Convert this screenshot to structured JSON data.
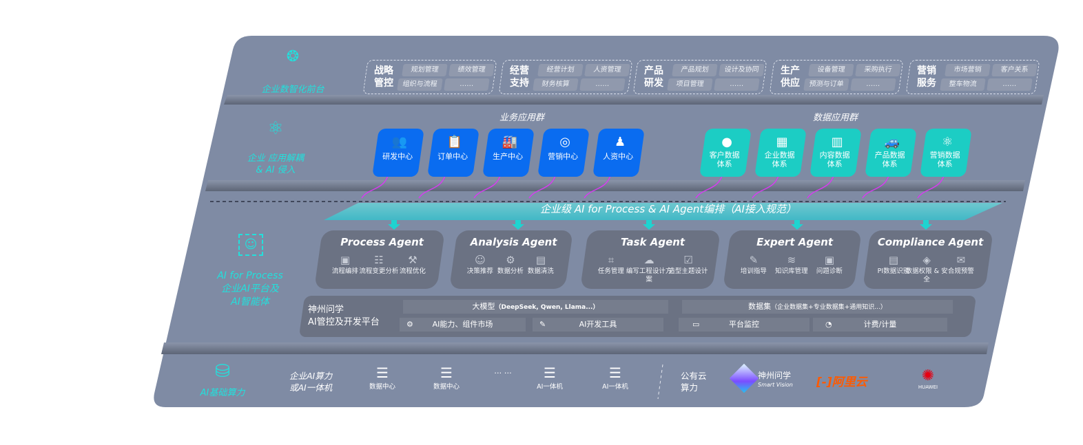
{
  "layers": {
    "front": "企业数智化前台",
    "apps": [
      "企业 应用解耦",
      "& AI 侵入"
    ],
    "ai": [
      "AI for Process",
      "企业AI平台及",
      "AI智能体"
    ],
    "infra": "AI基础算力"
  },
  "front_groups": [
    {
      "title": [
        "战略",
        "管控"
      ],
      "items": [
        "规划管理",
        "绩效管理",
        "组织与流程",
        "……"
      ]
    },
    {
      "title": [
        "经营",
        "支持"
      ],
      "items": [
        "经营计划",
        "人资管理",
        "财务核算",
        "……"
      ]
    },
    {
      "title": [
        "产品",
        "研发"
      ],
      "items": [
        "产品规划",
        "设计及协同",
        "项目管理",
        "……"
      ]
    },
    {
      "title": [
        "生产",
        "供应"
      ],
      "items": [
        "设备管理",
        "采购执行",
        "预测与订单",
        "……"
      ]
    },
    {
      "title": [
        "营销",
        "服务"
      ],
      "items": [
        "市场营销",
        "客户关系",
        "整车物流",
        "……"
      ]
    }
  ],
  "business_apps": {
    "title": "业务应用群",
    "items": [
      {
        "label": "研发中心",
        "icon": "team-icon"
      },
      {
        "label": "订单中心",
        "icon": "clipboard-icon"
      },
      {
        "label": "生产中心",
        "icon": "factory-icon"
      },
      {
        "label": "营销中心",
        "icon": "target-icon"
      },
      {
        "label": "人资中心",
        "icon": "people-icon"
      }
    ]
  },
  "data_apps": {
    "title": "数据应用群",
    "items": [
      {
        "label": [
          "客户数据",
          "体系"
        ],
        "icon": "user-icon"
      },
      {
        "label": [
          "企业数据",
          "体系"
        ],
        "icon": "building-icon"
      },
      {
        "label": [
          "内容数据",
          "体系"
        ],
        "icon": "books-icon"
      },
      {
        "label": [
          "产品数据",
          "体系"
        ],
        "icon": "car-icon"
      },
      {
        "label": [
          "营销数据",
          "体系"
        ],
        "icon": "atom-icon"
      }
    ]
  },
  "orchestration": "企业级 AI for Process & AI Agent编排（AI接入规范）",
  "agents": [
    {
      "name": "Process Agent",
      "items": [
        "流程编排",
        "流程变更分析",
        "流程优化"
      ]
    },
    {
      "name": "Analysis Agent",
      "items": [
        "决策推荐",
        "数据分析",
        "数据清洗"
      ]
    },
    {
      "name": "Task Agent",
      "items": [
        "任务管理",
        "编写工程设计方案",
        "造型主题设计"
      ]
    },
    {
      "name": "Expert Agent",
      "items": [
        "培训指导",
        "知识库管理",
        "问题诊断"
      ]
    },
    {
      "name": "Compliance Agent",
      "items": [
        "PI数据识别",
        "数据权限 & 安全",
        "合规预警"
      ]
    }
  ],
  "platform": {
    "title": [
      "神州问学",
      "AI管控及开发平台"
    ],
    "llm": "大模型",
    "llm_note": "（DeepSeek, Qwen, Llama...）",
    "dataset": "数据集",
    "dataset_note": "（企业数据集+专业数据集+通用知识...）",
    "market": "AI能力、组件市场",
    "devtools": "AI开发工具",
    "monitor": "平台监控",
    "billing": "计费/计量"
  },
  "infra": {
    "private": [
      "企业AI算力",
      "或AI一体机"
    ],
    "nodes": [
      "数据中心",
      "数据中心",
      "AI一体机",
      "AI一体机"
    ],
    "ellipsis": "… …",
    "public": [
      "公有云",
      "算力"
    ],
    "vendors": {
      "shenzhou": "神州问学",
      "shenzhou_sub": "Smart Vision",
      "aliyun": "阿里云",
      "huawei": "HUAWEI"
    }
  },
  "colors": {
    "panel": "#7f8ba4",
    "blue": "#0a6cf0",
    "teal": "#1ccdc4",
    "cyan": "#22e0dc",
    "arrow": "#d63cf0",
    "aliyun": "#ff5a00",
    "huawei": "#e60012"
  }
}
